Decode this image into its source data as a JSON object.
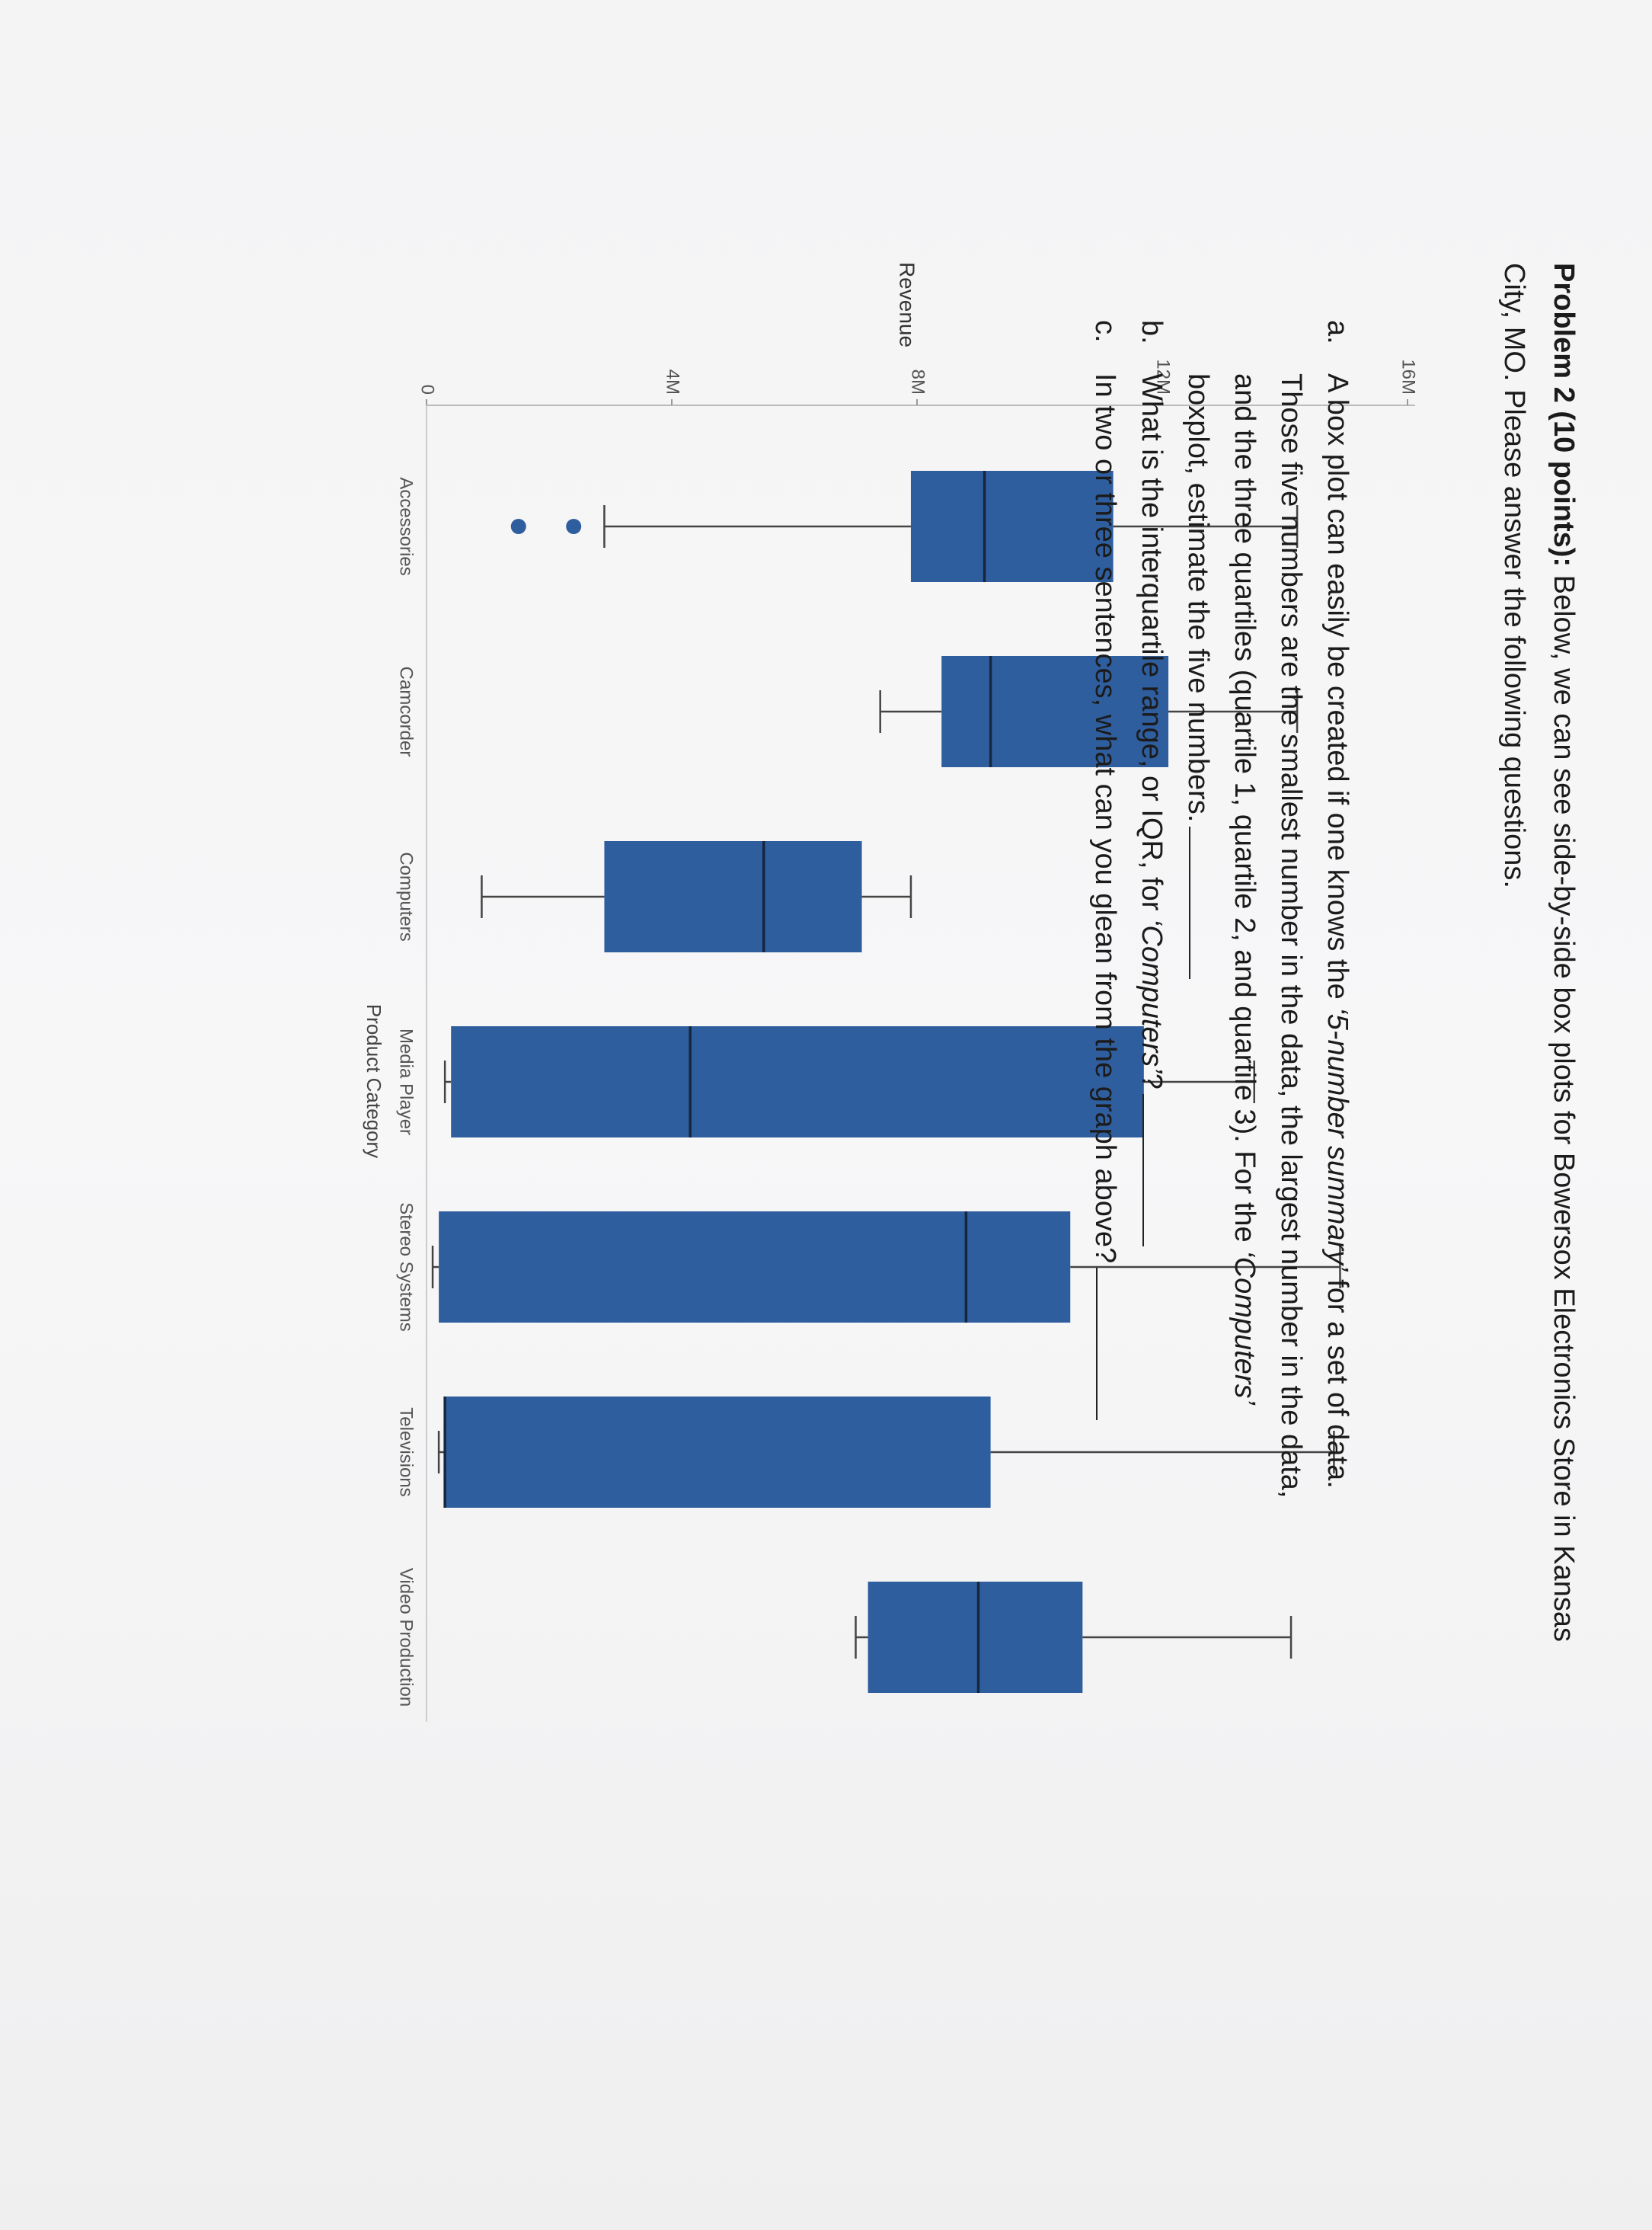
{
  "header": {
    "title": {
      "lines": [
        [
          {
            "text": "Problem 2 (10 points):",
            "style": "bold"
          },
          {
            "text": " Below, we can see side-by-side box plots for Bowersox Electronics Store in Kansas"
          }
        ],
        [
          {
            "text": "City, MO. Please answer the following questions."
          }
        ]
      ]
    }
  },
  "chart_data": {
    "type": "box",
    "x_label": "Product Category",
    "y_label": "Revenue",
    "color": "#2f5e9f",
    "median_color": "#17263f",
    "categories": [
      "Accessories",
      "Camcorder",
      "Computers",
      "Media Player",
      "Stereo Systems",
      "Televisions",
      "Video Production"
    ],
    "boxes": [
      {
        "min": 2900000,
        "q1": 7900000,
        "median": 9100000,
        "q3": 11200000,
        "max": 14200000,
        "outliers": [
          2400000,
          1500000
        ]
      },
      {
        "min": 7400000,
        "q1": 8400000,
        "median": 9200000,
        "q3": 12100000,
        "max": 14200000
      },
      {
        "min": 900000,
        "q1": 2900000,
        "median": 5500000,
        "q3": 7100000,
        "max": 7900000
      },
      {
        "min": 300000,
        "q1": 400000,
        "median": 4300000,
        "q3": 11700000,
        "max": 13500000
      },
      {
        "min": 100000,
        "q1": 200000,
        "median": 8800000,
        "q3": 10500000,
        "max": 14900000
      },
      {
        "min": 200000,
        "q1": 300000,
        "median": 300000,
        "q3": 9200000,
        "max": 14800000
      },
      {
        "min": 7000000,
        "q1": 7200000,
        "median": 9000000,
        "q3": 10700000,
        "max": 14100000
      }
    ],
    "ylim": [
      0,
      16000000
    ],
    "yticks": [
      0,
      {
        "value": 4000000,
        "label": "4M"
      },
      {
        "value": 8000000,
        "label": "8M"
      },
      {
        "value": 12000000,
        "label": "12M"
      },
      {
        "value": 16000000,
        "label": "16M"
      }
    ]
  },
  "questions": [
    {
      "label": "a.",
      "lines": [
        [
          {
            "text": "A box plot can easily be created if one knows the "
          },
          {
            "text": "‘5-number summary’",
            "style": "italic"
          },
          {
            "text": " for a set of data."
          }
        ],
        [
          {
            "text": "Those five numbers are the smallest number in the data, the largest number in the data,"
          }
        ],
        [
          {
            "text": "and the three quartiles (quartile 1, quartile 2, and quartile 3). For the "
          },
          {
            "text": "‘Computers’",
            "style": "italic"
          }
        ],
        [
          {
            "text": "boxplot, estimate the five numbers."
          }
        ]
      ]
    },
    {
      "label": "b.",
      "lines": [
        [
          {
            "text": "What is the interquartile range, or IQR, for "
          },
          {
            "text": "‘Computers’",
            "style": "italic"
          },
          {
            "text": "?"
          }
        ]
      ]
    },
    {
      "label": "c.",
      "lines": [
        [
          {
            "text": "In two or three sentences, what can you glean from the graph above?"
          }
        ]
      ]
    }
  ]
}
